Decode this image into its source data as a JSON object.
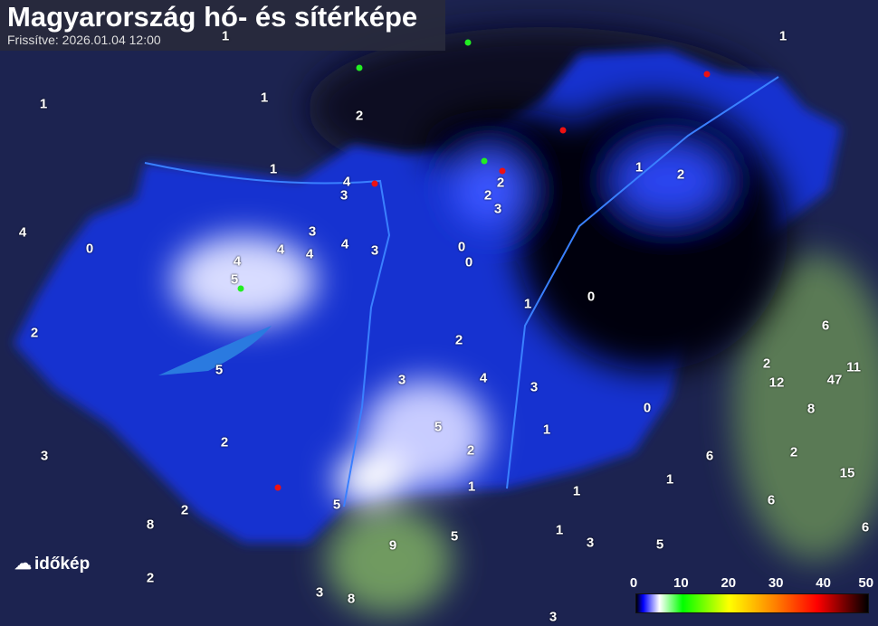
{
  "header": {
    "title": "Magyarország hó- és sítérképe",
    "updated": "Frissítve: 2026.01.04 12:00"
  },
  "legend": {
    "ticks": [
      "0",
      "10",
      "20",
      "30",
      "40",
      "50"
    ],
    "unit_hint": "snow depth scale"
  },
  "logo": {
    "text": "időkép"
  },
  "colors": {
    "background": "#1c2350",
    "snow_low": "#2030ff",
    "snow_high": "#ffffff",
    "country_dark": "#05060f",
    "marker_green": "#22ee22",
    "marker_red": "#ee1111"
  },
  "snow_depths": [
    "1",
    "1",
    "2",
    "1",
    "1",
    "4",
    "3",
    "2",
    "2",
    "3",
    "1",
    "2",
    "4",
    "0",
    "3",
    "4",
    "4",
    "4",
    "3",
    "0",
    "0",
    "4",
    "5",
    "1",
    "0",
    "6",
    "2",
    "2",
    "5",
    "2",
    "11",
    "12",
    "47",
    "3",
    "4",
    "3",
    "0",
    "8",
    "5",
    "1",
    "2",
    "2",
    "3",
    "2",
    "6",
    "15",
    "1",
    "1",
    "1",
    "5",
    "6",
    "2",
    "8",
    "6",
    "1",
    "5",
    "9",
    "3",
    "5",
    "2",
    "3",
    "8",
    "3",
    "1"
  ],
  "stations": [
    "green",
    "green",
    "green",
    "green",
    "red",
    "red",
    "red",
    "red",
    "red"
  ]
}
